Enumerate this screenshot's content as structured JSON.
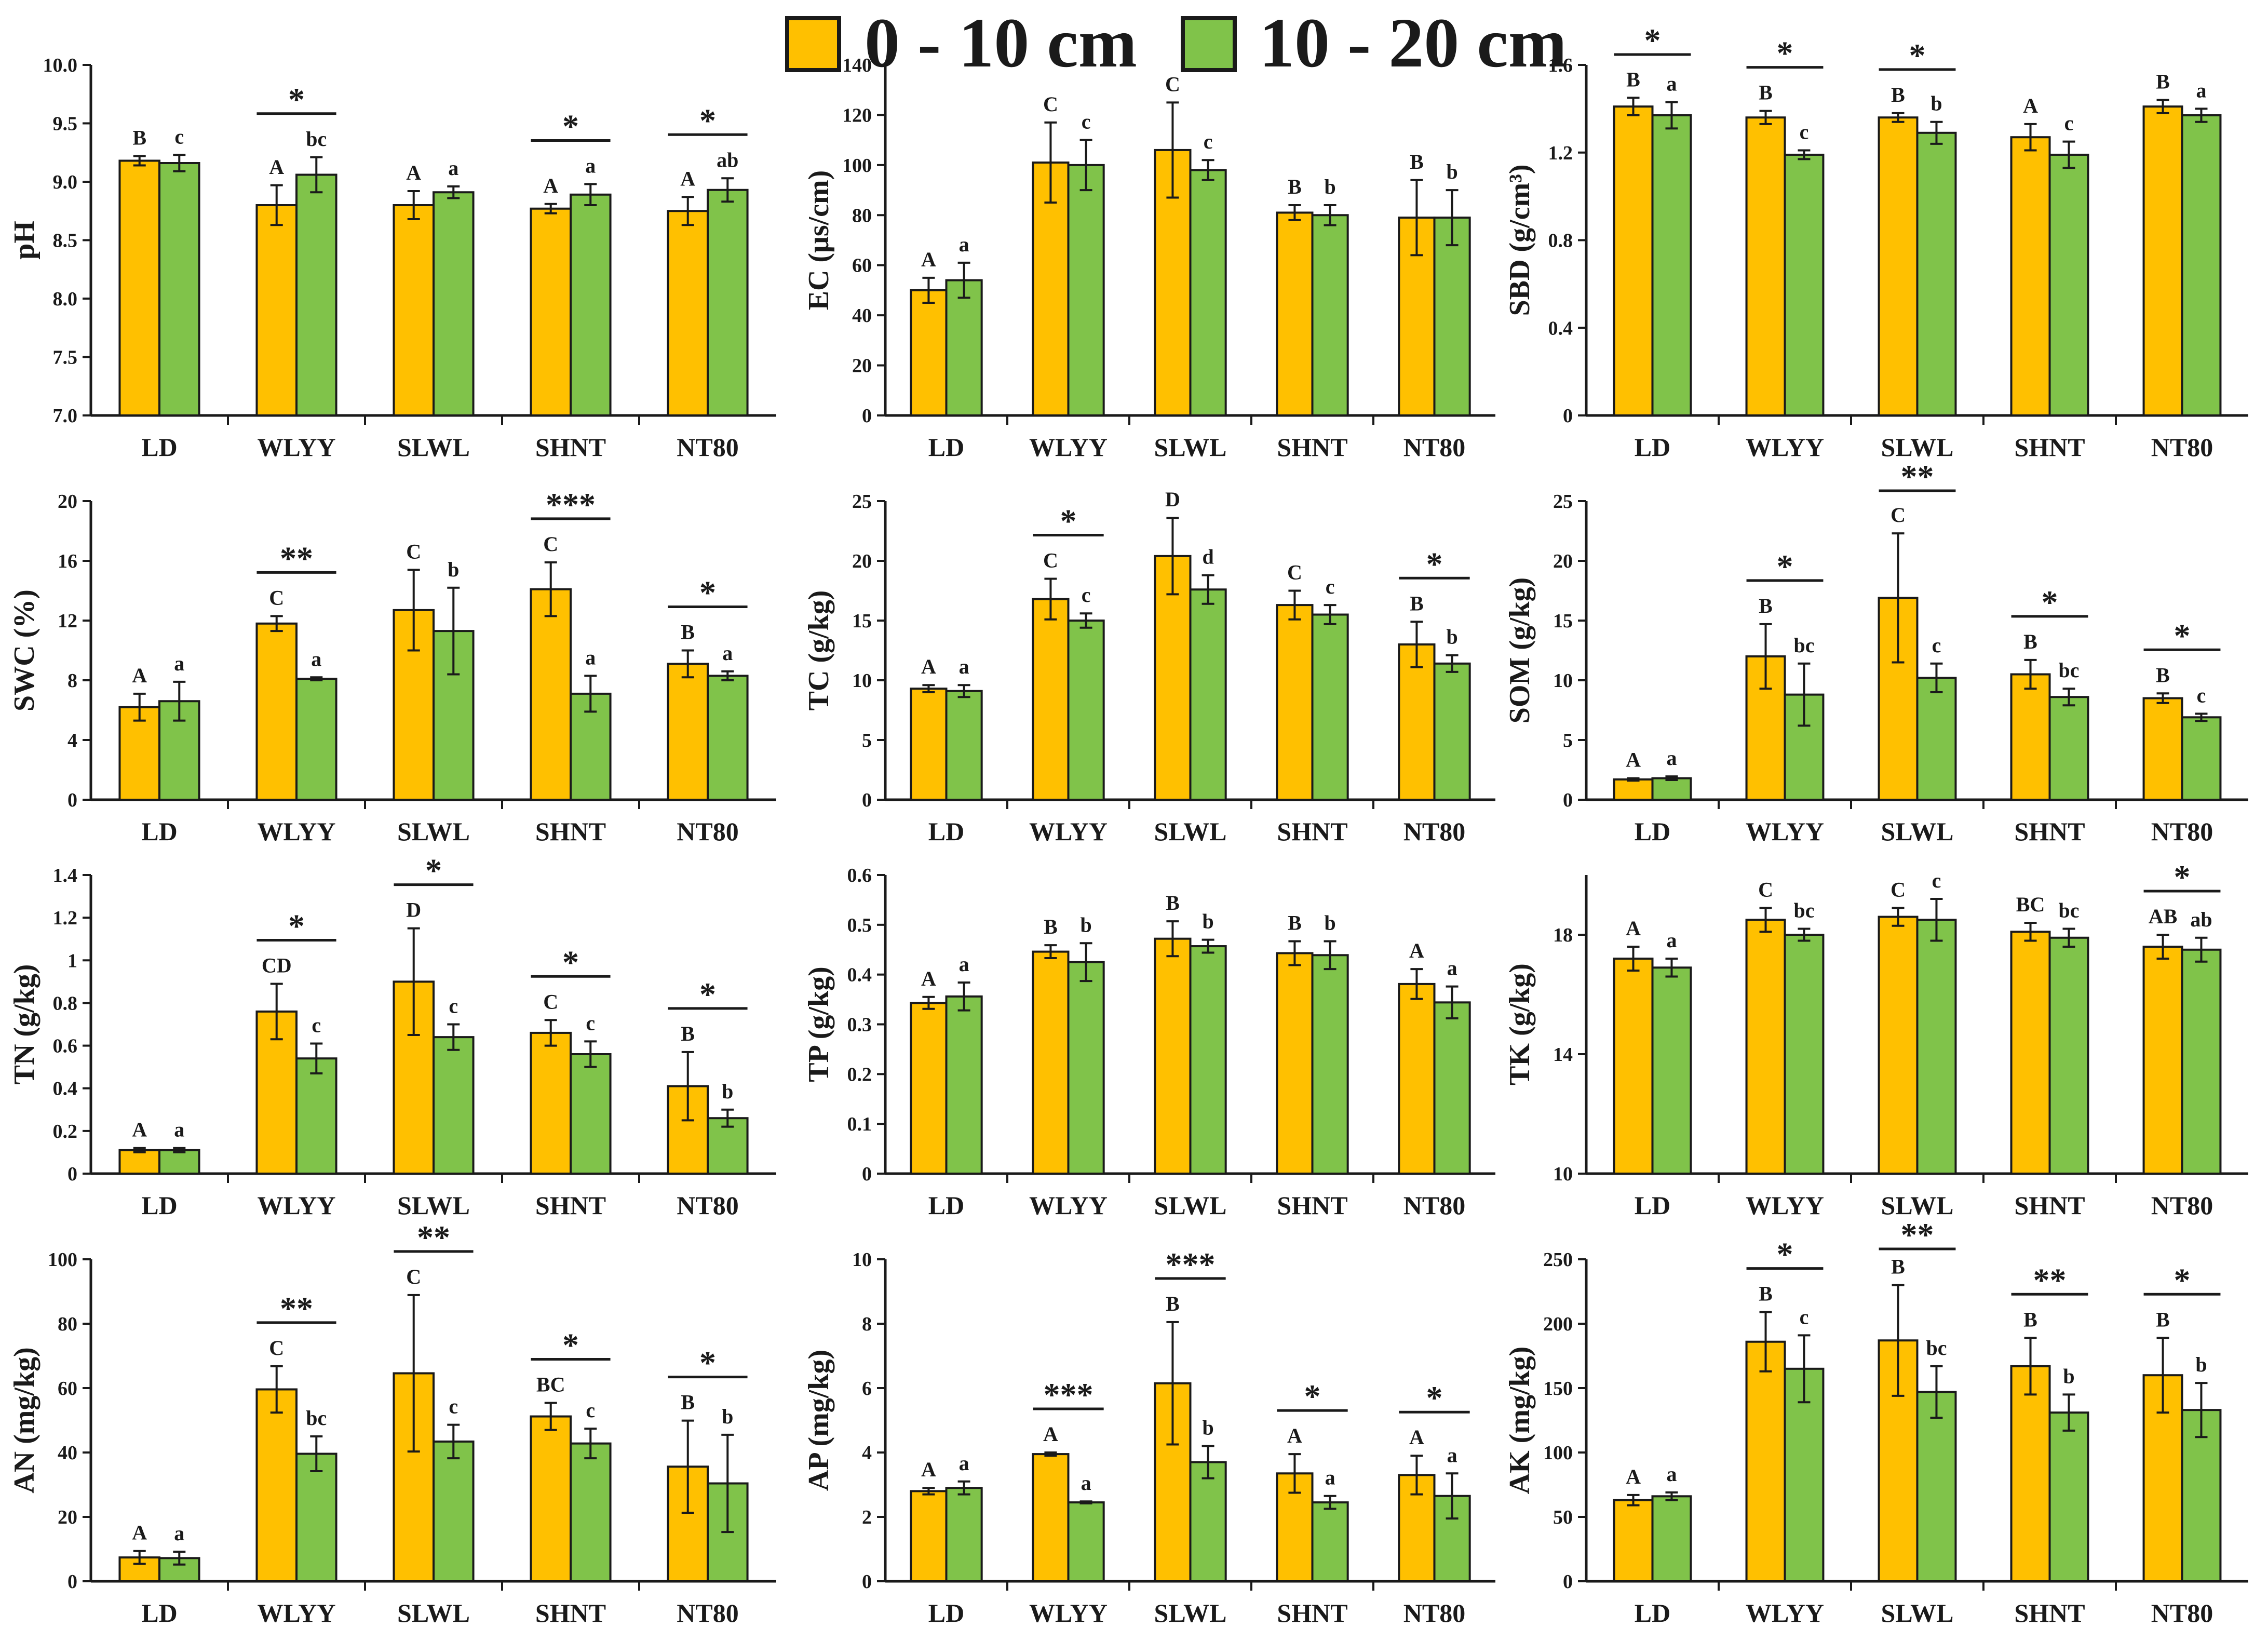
{
  "legend": {
    "items": [
      {
        "label": "0 - 10 cm",
        "color": "#FFC000"
      },
      {
        "label": "10 - 20 cm",
        "color": "#80C34A"
      }
    ]
  },
  "colors": {
    "series1": "#FFC000",
    "series2": "#80C34A",
    "stroke": "#1a1a1a"
  },
  "chart_data": [
    {
      "type": "bar",
      "ylabel": "pH",
      "ylim": [
        7.0,
        10.0
      ],
      "ticks": [
        "7.0",
        "7.5",
        "8.0",
        "8.5",
        "9.0",
        "9.5",
        "10.0"
      ],
      "categories": [
        "LD",
        "WLYY",
        "SLWL",
        "SHNT",
        "NT80"
      ],
      "series": [
        {
          "name": "0 - 10 cm",
          "values": [
            9.18,
            8.8,
            8.8,
            8.77,
            8.75
          ],
          "errors": [
            0.04,
            0.17,
            0.12,
            0.04,
            0.12
          ],
          "labels": [
            "B",
            "A",
            "A",
            "A",
            "A"
          ]
        },
        {
          "name": "10 - 20 cm",
          "values": [
            9.16,
            9.06,
            8.91,
            8.89,
            8.93
          ],
          "errors": [
            0.07,
            0.15,
            0.05,
            0.09,
            0.1
          ],
          "labels": [
            "c",
            "bc",
            "a",
            "a",
            "ab"
          ]
        }
      ],
      "significance": [
        "",
        "*",
        "",
        "*",
        "*"
      ]
    },
    {
      "type": "bar",
      "ylabel": "EC (μs/cm)",
      "ylim": [
        0,
        140
      ],
      "ticks": [
        "0",
        "20",
        "40",
        "60",
        "80",
        "100",
        "120",
        "140"
      ],
      "categories": [
        "LD",
        "WLYY",
        "SLWL",
        "SHNT",
        "NT80"
      ],
      "series": [
        {
          "name": "0 - 10 cm",
          "values": [
            50,
            101,
            106,
            81,
            79
          ],
          "errors": [
            5,
            16,
            19,
            3,
            15
          ],
          "labels": [
            "A",
            "C",
            "C",
            "B",
            "B"
          ]
        },
        {
          "name": "10 - 20 cm",
          "values": [
            54,
            100,
            98,
            80,
            79
          ],
          "errors": [
            7,
            10,
            4,
            4,
            11
          ],
          "labels": [
            "a",
            "c",
            "c",
            "b",
            "b"
          ]
        }
      ],
      "significance": [
        "",
        "",
        "",
        "",
        ""
      ]
    },
    {
      "type": "bar",
      "ylabel": "SBD (g/cm³)",
      "ylim": [
        0,
        1.6
      ],
      "ticks": [
        "0",
        "0.4",
        "0.8",
        "1.2",
        "1.6"
      ],
      "categories": [
        "LD",
        "WLYY",
        "SLWL",
        "SHNT",
        "NT80"
      ],
      "series": [
        {
          "name": "0 - 10 cm",
          "values": [
            1.41,
            1.36,
            1.36,
            1.27,
            1.41
          ],
          "errors": [
            0.04,
            0.03,
            0.02,
            0.06,
            0.03
          ],
          "labels": [
            "B",
            "B",
            "B",
            "A",
            "B"
          ]
        },
        {
          "name": "10 - 20 cm",
          "values": [
            1.37,
            1.19,
            1.29,
            1.19,
            1.37
          ],
          "errors": [
            0.06,
            0.02,
            0.05,
            0.06,
            0.03
          ],
          "labels": [
            "a",
            "c",
            "b",
            "c",
            "a"
          ]
        }
      ],
      "significance": [
        "*",
        "*",
        "*",
        "",
        ""
      ]
    },
    {
      "type": "bar",
      "ylabel": "SWC (%)",
      "ylim": [
        0,
        20
      ],
      "ticks": [
        "0",
        "4",
        "8",
        "12",
        "16",
        "20"
      ],
      "categories": [
        "LD",
        "WLYY",
        "SLWL",
        "SHNT",
        "NT80"
      ],
      "series": [
        {
          "name": "0 - 10 cm",
          "values": [
            6.2,
            11.8,
            12.7,
            14.1,
            9.1
          ],
          "errors": [
            0.9,
            0.5,
            2.7,
            1.8,
            0.9
          ],
          "labels": [
            "A",
            "C",
            "C",
            "C",
            "B"
          ]
        },
        {
          "name": "10 - 20 cm",
          "values": [
            6.6,
            8.1,
            11.3,
            7.1,
            8.3
          ],
          "errors": [
            1.3,
            0.1,
            2.9,
            1.2,
            0.3
          ],
          "labels": [
            "a",
            "a",
            "b",
            "a",
            "a"
          ]
        }
      ],
      "significance": [
        "",
        "**",
        "",
        "***",
        "*"
      ]
    },
    {
      "type": "bar",
      "ylabel": "TC (g/kg)",
      "ylim": [
        0,
        25
      ],
      "ticks": [
        "0",
        "5",
        "10",
        "15",
        "20",
        "25"
      ],
      "categories": [
        "LD",
        "WLYY",
        "SLWL",
        "SHNT",
        "NT80"
      ],
      "series": [
        {
          "name": "0 - 10 cm",
          "values": [
            9.3,
            16.8,
            20.4,
            16.3,
            13.0
          ],
          "errors": [
            0.3,
            1.7,
            3.2,
            1.2,
            1.9
          ],
          "labels": [
            "A",
            "C",
            "D",
            "C",
            "B"
          ]
        },
        {
          "name": "10 - 20 cm",
          "values": [
            9.1,
            15.0,
            17.6,
            15.5,
            11.4
          ],
          "errors": [
            0.5,
            0.6,
            1.2,
            0.8,
            0.7
          ],
          "labels": [
            "a",
            "c",
            "d",
            "c",
            "b"
          ]
        }
      ],
      "significance": [
        "",
        "*",
        "",
        "",
        "*"
      ]
    },
    {
      "type": "bar",
      "ylabel": "SOM (g/kg)",
      "ylim": [
        0,
        25
      ],
      "ticks": [
        "0",
        "5",
        "10",
        "15",
        "20",
        "25"
      ],
      "categories": [
        "LD",
        "WLYY",
        "SLWL",
        "SHNT",
        "NT80"
      ],
      "series": [
        {
          "name": "0 - 10 cm",
          "values": [
            1.7,
            12.0,
            16.9,
            10.5,
            8.5
          ],
          "errors": [
            0.1,
            2.7,
            5.4,
            1.2,
            0.4
          ],
          "labels": [
            "A",
            "B",
            "C",
            "B",
            "B"
          ]
        },
        {
          "name": "10 - 20 cm",
          "values": [
            1.8,
            8.8,
            10.2,
            8.6,
            6.9
          ],
          "errors": [
            0.15,
            2.6,
            1.2,
            0.7,
            0.3
          ],
          "labels": [
            "a",
            "bc",
            "c",
            "bc",
            "c"
          ]
        }
      ],
      "significance": [
        "",
        "*",
        "**",
        "*",
        "*"
      ]
    },
    {
      "type": "bar",
      "ylabel": "TN (g/kg)",
      "ylim": [
        0,
        1.4
      ],
      "ticks": [
        "0",
        "0.2",
        "0.4",
        "0.6",
        "0.8",
        "1",
        "1.2",
        "1.4"
      ],
      "categories": [
        "LD",
        "WLYY",
        "SLWL",
        "SHNT",
        "NT80"
      ],
      "series": [
        {
          "name": "0 - 10 cm",
          "values": [
            0.11,
            0.76,
            0.9,
            0.66,
            0.41
          ],
          "errors": [
            0.01,
            0.13,
            0.25,
            0.06,
            0.16
          ],
          "labels": [
            "A",
            "CD",
            "D",
            "C",
            "B"
          ]
        },
        {
          "name": "10 - 20 cm",
          "values": [
            0.11,
            0.54,
            0.64,
            0.56,
            0.26
          ],
          "errors": [
            0.01,
            0.07,
            0.06,
            0.06,
            0.04
          ],
          "labels": [
            "a",
            "c",
            "c",
            "c",
            "b"
          ]
        }
      ],
      "significance": [
        "",
        "*",
        "*",
        "*",
        "*"
      ]
    },
    {
      "type": "bar",
      "ylabel": "TP (g/kg)",
      "ylim": [
        0,
        0.6
      ],
      "ticks": [
        "0",
        "0.1",
        "0.2",
        "0.3",
        "0.4",
        "0.5",
        "0.6"
      ],
      "categories": [
        "LD",
        "WLYY",
        "SLWL",
        "SHNT",
        "NT80"
      ],
      "series": [
        {
          "name": "0 - 10 cm",
          "values": [
            0.343,
            0.446,
            0.472,
            0.443,
            0.381
          ],
          "errors": [
            0.012,
            0.013,
            0.035,
            0.024,
            0.03
          ],
          "labels": [
            "A",
            "B",
            "B",
            "B",
            "A"
          ]
        },
        {
          "name": "10 - 20 cm",
          "values": [
            0.356,
            0.425,
            0.457,
            0.439,
            0.344
          ],
          "errors": [
            0.028,
            0.038,
            0.013,
            0.028,
            0.032
          ],
          "labels": [
            "a",
            "b",
            "b",
            "b",
            "a"
          ]
        }
      ],
      "significance": [
        "",
        "",
        "",
        "",
        ""
      ]
    },
    {
      "type": "bar",
      "ylabel": "TK (g/kg)",
      "ylim": [
        10,
        20
      ],
      "ticks": [
        "10",
        "14",
        "18"
      ],
      "categories": [
        "LD",
        "WLYY",
        "SLWL",
        "SHNT",
        "NT80"
      ],
      "series": [
        {
          "name": "0 - 10 cm",
          "values": [
            17.2,
            18.5,
            18.6,
            18.1,
            17.6
          ],
          "errors": [
            0.4,
            0.4,
            0.3,
            0.3,
            0.4
          ],
          "labels": [
            "A",
            "C",
            "C",
            "BC",
            "AB"
          ]
        },
        {
          "name": "10 - 20 cm",
          "values": [
            16.9,
            18.0,
            18.5,
            17.9,
            17.5
          ],
          "errors": [
            0.3,
            0.2,
            0.7,
            0.3,
            0.4
          ],
          "labels": [
            "a",
            "bc",
            "c",
            "bc",
            "ab"
          ]
        }
      ],
      "significance": [
        "",
        "",
        "",
        "",
        "*"
      ]
    },
    {
      "type": "bar",
      "ylabel": "AN (mg/kg)",
      "ylim": [
        0,
        100
      ],
      "ticks": [
        "0",
        "20",
        "40",
        "60",
        "80",
        "100"
      ],
      "categories": [
        "LD",
        "WLYY",
        "SLWL",
        "SHNT",
        "NT80"
      ],
      "series": [
        {
          "name": "0 - 10 cm",
          "values": [
            7.4,
            59.6,
            64.6,
            51.2,
            35.6
          ],
          "errors": [
            2,
            7.2,
            24.3,
            4.2,
            14.3
          ],
          "labels": [
            "A",
            "C",
            "C",
            "BC",
            "B"
          ]
        },
        {
          "name": "10 - 20 cm",
          "values": [
            7.2,
            39.6,
            43.4,
            42.8,
            30.4
          ],
          "errors": [
            2,
            5.4,
            5.2,
            4.6,
            15.1
          ],
          "labels": [
            "a",
            "bc",
            "c",
            "c",
            "b"
          ]
        }
      ],
      "significance": [
        "",
        "**",
        "**",
        "*",
        "*"
      ]
    },
    {
      "type": "bar",
      "ylabel": "AP (mg/kg)",
      "ylim": [
        0,
        10
      ],
      "ticks": [
        "0",
        "2",
        "4",
        "6",
        "8",
        "10"
      ],
      "categories": [
        "LD",
        "WLYY",
        "SLWL",
        "SHNT",
        "NT80"
      ],
      "series": [
        {
          "name": "0 - 10 cm",
          "values": [
            2.8,
            3.95,
            6.15,
            3.35,
            3.3
          ],
          "errors": [
            0.1,
            0.05,
            1.9,
            0.6,
            0.6
          ],
          "labels": [
            "A",
            "A",
            "B",
            "A",
            "A"
          ]
        },
        {
          "name": "10 - 20 cm",
          "values": [
            2.9,
            2.45,
            3.7,
            2.45,
            2.65
          ],
          "errors": [
            0.2,
            0.03,
            0.5,
            0.2,
            0.7
          ],
          "labels": [
            "a",
            "a",
            "b",
            "a",
            "a"
          ]
        }
      ],
      "significance": [
        "",
        "***",
        "***",
        "*",
        "*"
      ]
    },
    {
      "type": "bar",
      "ylabel": "AK (mg/kg)",
      "ylim": [
        0,
        250
      ],
      "ticks": [
        "0",
        "50",
        "100",
        "150",
        "200",
        "250"
      ],
      "categories": [
        "LD",
        "WLYY",
        "SLWL",
        "SHNT",
        "NT80"
      ],
      "series": [
        {
          "name": "0 - 10 cm",
          "values": [
            63,
            186,
            187,
            167,
            160
          ],
          "errors": [
            4,
            23,
            43,
            22,
            29
          ],
          "labels": [
            "A",
            "B",
            "B",
            "B",
            "B"
          ]
        },
        {
          "name": "10 - 20 cm",
          "values": [
            66,
            165,
            147,
            131,
            133
          ],
          "errors": [
            3,
            26,
            20,
            14,
            21
          ],
          "labels": [
            "a",
            "c",
            "bc",
            "b",
            "b"
          ]
        }
      ],
      "significance": [
        "",
        "*",
        "**",
        "**",
        "*"
      ]
    }
  ]
}
